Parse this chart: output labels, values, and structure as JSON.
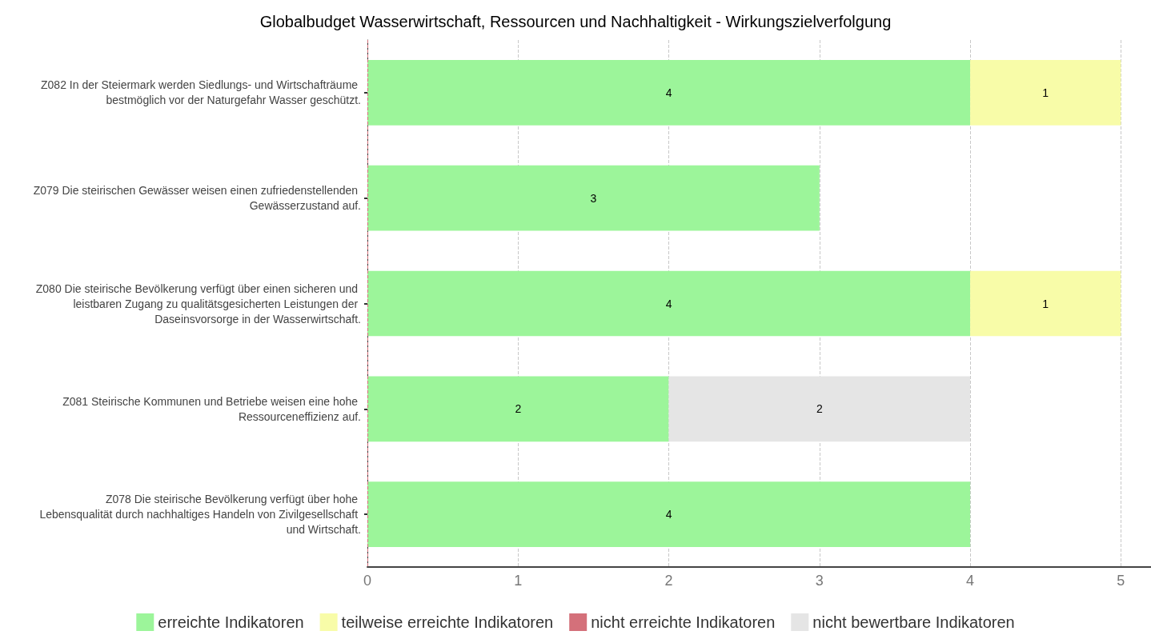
{
  "chart_data": {
    "type": "bar",
    "orientation": "horizontal",
    "stacked": true,
    "title": "Globalbudget Wasserwirtschaft, Ressourcen und Nachhaltigkeit - Wirkungszielverfolgung",
    "categories": [
      "Z082 In der Steiermark werden Siedlungs- und Wirtschafträume bestmöglich vor der Naturgefahr Wasser geschützt.",
      "Z079 Die steirischen Gewässer weisen einen zufriedenstellenden Gewässerzustand auf.",
      "Z080 Die steirische Bevölkerung verfügt über einen sicheren und leistbaren Zugang zu qualitätsgesicherten Leistungen der Daseinsvorsorge in der Wasserwirtschaft.",
      "Z081 Steirische Kommunen und Betriebe weisen eine hohe Ressourceneffizienz auf.",
      "Z078 Die steirische Bevölkerung verfügt über hohe Lebensqualität durch nachhaltiges Handeln von Zivilgesellschaft und Wirtschaft."
    ],
    "series": [
      {
        "name": "erreichte Indikatoren",
        "color": "#9cf59a",
        "values": [
          4,
          3,
          4,
          2,
          4
        ]
      },
      {
        "name": "teilweise erreichte Indikatoren",
        "color": "#f8fca8",
        "values": [
          1,
          null,
          1,
          null,
          null
        ]
      },
      {
        "name": "nicht erreichte Indikatoren",
        "color": "#d4707a",
        "values": [
          null,
          null,
          null,
          null,
          null
        ]
      },
      {
        "name": "nicht bewertbare Indikatoren",
        "color": "#e5e5e5",
        "values": [
          null,
          null,
          null,
          2,
          null
        ]
      }
    ],
    "xlim": [
      0,
      5.2
    ],
    "xticks": [
      0,
      1,
      2,
      3,
      4,
      5
    ],
    "grid": "x",
    "legend": "bottom",
    "data_labels": true,
    "ref_lines": [
      {
        "axis": "x",
        "value": 0,
        "color": "#d4707a",
        "line_style": "dashed"
      }
    ]
  }
}
